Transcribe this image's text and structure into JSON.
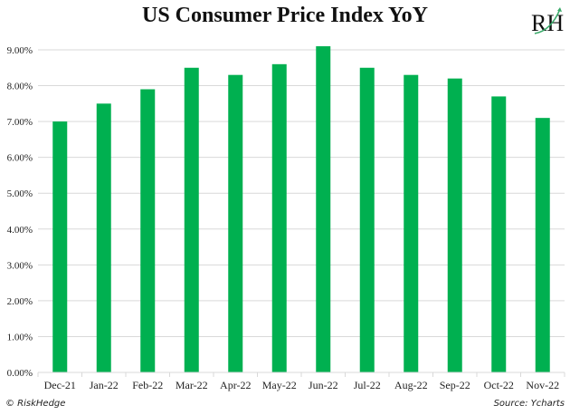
{
  "header": {
    "title": "US Consumer Price Index YoY",
    "logo_text": "RH"
  },
  "footer": {
    "copyright": "© RiskHedge",
    "source": "Source: Ycharts"
  },
  "colors": {
    "bar": "#00b050",
    "grid": "#d9d9d9",
    "logo_accent": "#3aaa6a"
  },
  "chart_data": {
    "type": "bar",
    "title": "US Consumer Price Index YoY",
    "xlabel": "",
    "ylabel": "",
    "categories": [
      "Dec-21",
      "Jan-22",
      "Feb-22",
      "Mar-22",
      "Apr-22",
      "May-22",
      "Jun-22",
      "Jul-22",
      "Aug-22",
      "Sep-22",
      "Oct-22",
      "Nov-22"
    ],
    "values": [
      7.0,
      7.5,
      7.9,
      8.5,
      8.3,
      8.6,
      9.1,
      8.5,
      8.3,
      8.2,
      7.7,
      7.1
    ],
    "unit": "%",
    "ylim": [
      0,
      9
    ],
    "yticks": [
      0,
      1,
      2,
      3,
      4,
      5,
      6,
      7,
      8,
      9
    ],
    "ytick_labels": [
      "0.00%",
      "1.00%",
      "2.00%",
      "3.00%",
      "4.00%",
      "5.00%",
      "6.00%",
      "7.00%",
      "8.00%",
      "9.00%"
    ],
    "grid": true,
    "legend": "none"
  }
}
